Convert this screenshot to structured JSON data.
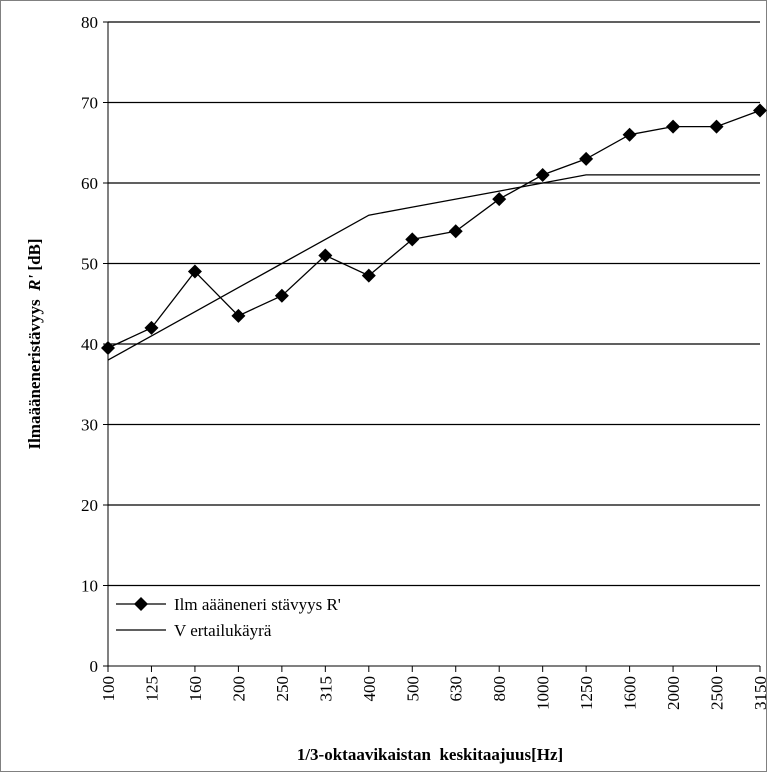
{
  "chart_data": {
    "type": "line",
    "categories": [
      "100",
      "125",
      "160",
      "200",
      "250",
      "315",
      "400",
      "500",
      "630",
      "800",
      "1000",
      "1250",
      "1600",
      "2000",
      "2500",
      "3150"
    ],
    "xlabel": "1/3-oktaavikaistan  keskitaajuus[Hz]",
    "ylabel_prefix": "Ilmaääneneristävyys  ",
    "ylabel_italic": "R'",
    "ylabel_suffix": " [dB]",
    "ylim": [
      0,
      80
    ],
    "yticks": [
      0,
      10,
      20,
      30,
      40,
      50,
      60,
      70,
      80
    ],
    "grid": true,
    "legend_position": "bottom-left",
    "series": [
      {
        "name": "Ilm aääneneri stävyys R'",
        "marker": "diamond",
        "color": "#000000",
        "values": [
          39.5,
          42,
          49,
          43.5,
          46,
          51,
          48.5,
          53,
          54,
          58,
          61,
          63,
          66,
          67,
          67,
          69
        ]
      },
      {
        "name": "V ertailukäyrä",
        "marker": "none",
        "color": "#000000",
        "values": [
          38,
          41,
          44,
          47,
          50,
          53,
          56,
          57,
          58,
          59,
          60,
          61,
          61,
          61,
          61,
          61
        ]
      }
    ]
  }
}
